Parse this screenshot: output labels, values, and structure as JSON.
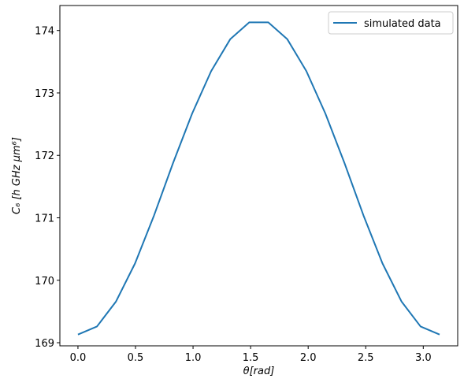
{
  "chart_data": {
    "type": "line",
    "xlabel": "θ[rad]",
    "ylabel": "C₆ [h GHz μm⁶]",
    "xlim": [
      -0.157,
      3.299
    ],
    "ylim": [
      168.95,
      174.4
    ],
    "xticks": [
      0.0,
      0.5,
      1.0,
      1.5,
      2.0,
      2.5,
      3.0
    ],
    "xtick_labels": [
      "0.0",
      "0.5",
      "1.0",
      "1.5",
      "2.0",
      "2.5",
      "3.0"
    ],
    "yticks": [
      169,
      170,
      171,
      172,
      173,
      174
    ],
    "ytick_labels": [
      "169",
      "170",
      "171",
      "172",
      "173",
      "174"
    ],
    "grid": false,
    "legend_position": "top-right",
    "series": [
      {
        "name": "simulated data",
        "color": "#1f77b4",
        "x": [
          0.0,
          0.1653,
          0.3307,
          0.496,
          0.6614,
          0.8267,
          0.9921,
          1.1574,
          1.3228,
          1.4881,
          1.6535,
          1.8188,
          1.9842,
          2.1495,
          2.3149,
          2.4802,
          2.6456,
          2.8109,
          2.9763,
          3.1416
        ],
        "y": [
          169.13,
          169.26,
          169.66,
          170.27,
          171.04,
          171.88,
          172.67,
          173.35,
          173.86,
          174.13,
          174.13,
          173.86,
          173.35,
          172.67,
          171.88,
          171.04,
          170.27,
          169.66,
          169.26,
          169.13
        ]
      }
    ]
  }
}
